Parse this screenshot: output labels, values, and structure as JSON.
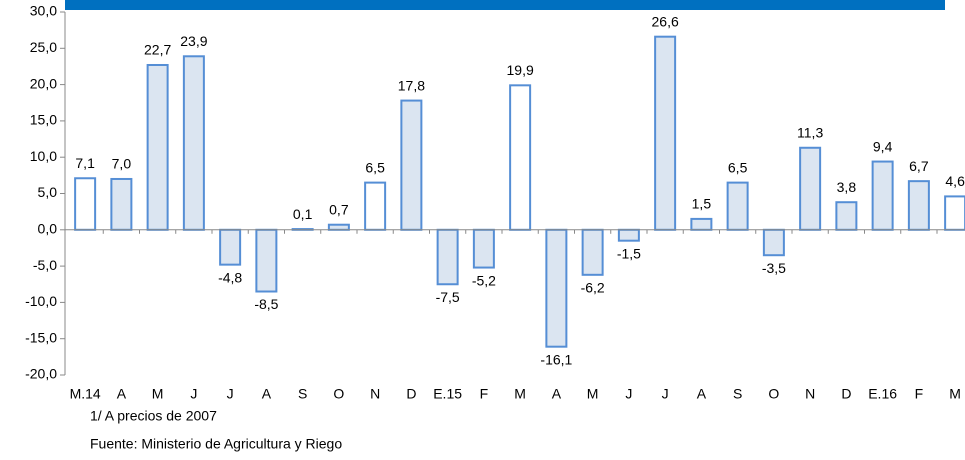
{
  "chart_data": {
    "type": "bar",
    "categories": [
      "M.14",
      "A",
      "M",
      "J",
      "J",
      "A",
      "S",
      "O",
      "N",
      "D",
      "E.15",
      "F",
      "M",
      "A",
      "M",
      "J",
      "J",
      "A",
      "S",
      "O",
      "N",
      "D",
      "E.16",
      "F",
      "M"
    ],
    "values": [
      7.1,
      7.0,
      22.7,
      23.9,
      -4.8,
      -8.5,
      0.1,
      0.7,
      6.5,
      17.8,
      -7.5,
      -5.2,
      19.9,
      -16.1,
      -6.2,
      -1.5,
      26.6,
      1.5,
      6.5,
      -3.5,
      11.3,
      3.8,
      9.4,
      6.7,
      4.6
    ],
    "value_labels": [
      "7,1",
      "7,0",
      "22,7",
      "23,9",
      "-4,8",
      "-8,5",
      "0,1",
      "0,7",
      "6,5",
      "17,8",
      "-7,5",
      "-5,2",
      "19,9",
      "-16,1",
      "-6,2",
      "-1,5",
      "26,6",
      "1,5",
      "6,5",
      "-3,5",
      "11,3",
      "3,8",
      "9,4",
      "6,7",
      "4,6"
    ],
    "bar_colors": [
      "#ffffff",
      "#dbe5f1",
      "#dbe5f1",
      "#dbe5f1",
      "#dbe5f1",
      "#dbe5f1",
      "#ffffff",
      "#dbe5f1",
      "#ffffff",
      "#dbe5f1",
      "#dbe5f1",
      "#dbe5f1",
      "#ffffff",
      "#dbe5f1",
      "#dbe5f1",
      "#dbe5f1",
      "#dbe5f1",
      "#dbe5f1",
      "#dbe5f1",
      "#dbe5f1",
      "#dbe5f1",
      "#dbe5f1",
      "#dbe5f1",
      "#dbe5f1",
      "#ffffff"
    ],
    "edge_color": "#558ed5",
    "ylim": [
      -20,
      30
    ],
    "yticks": [
      {
        "value": -20,
        "label": "-20,0"
      },
      {
        "value": -15,
        "label": "-15,0"
      },
      {
        "value": -10,
        "label": "-10,0"
      },
      {
        "value": -5,
        "label": "-5,0"
      },
      {
        "value": 0,
        "label": "0,0"
      },
      {
        "value": 5,
        "label": "5,0"
      },
      {
        "value": 10,
        "label": "10,0"
      },
      {
        "value": 15,
        "label": "15,0"
      },
      {
        "value": 20,
        "label": "20,0"
      },
      {
        "value": 25,
        "label": "25,0"
      },
      {
        "value": 30,
        "label": "30,0"
      }
    ],
    "notes": [
      "1/ A precios de 2007",
      "Fuente: Ministerio de Agricultura y Riego"
    ]
  }
}
